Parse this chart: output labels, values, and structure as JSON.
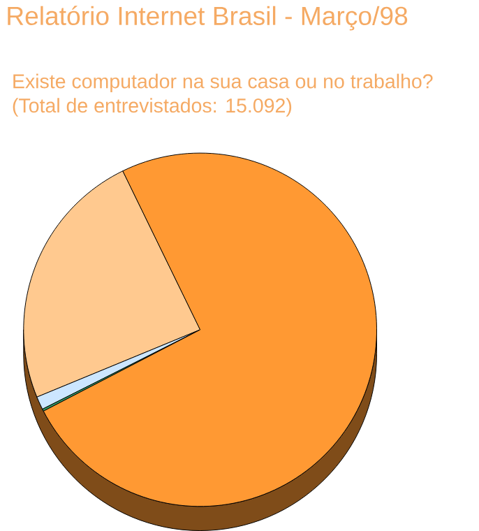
{
  "chart_data": {
    "type": "pie",
    "title": "Relatório Internet Brasil - Março/98",
    "subtitle": "Existe computador na sua casa ou no trabalho?\n(Total de entrevistados: 15.092)",
    "categories": [
      null,
      null,
      null,
      null
    ],
    "values": [
      24,
      1.2,
      0.2,
      74.6
    ],
    "colors": [
      "#ffc98f",
      "#cce6ff",
      "#339966",
      "#ff9933"
    ]
  }
}
